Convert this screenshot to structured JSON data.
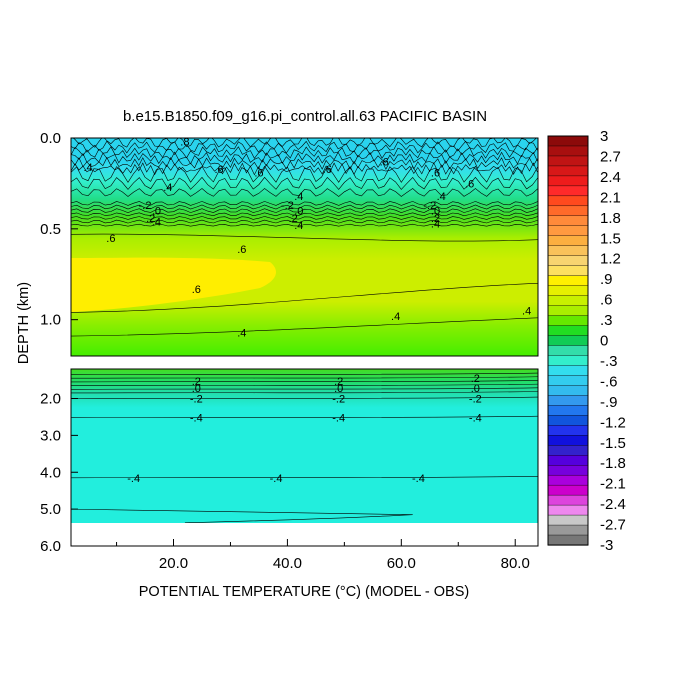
{
  "chart_data": {
    "type": "heatmap",
    "title": "b.e15.B1850.f09_g16.pi_control.all.63 PACIFIC BASIN",
    "xlabel": "POTENTIAL TEMPERATURE (°C) (MODEL - OBS)",
    "ylabel": "DEPTH (km)",
    "xlim": [
      2,
      84
    ],
    "upper_panel": {
      "ylim": [
        0.0,
        1.2
      ],
      "yticks": [
        "0.0",
        "0.5",
        "1.0"
      ]
    },
    "lower_panel": {
      "ylim": [
        1.2,
        6.0
      ],
      "yticks": [
        "2.0",
        "3.0",
        "4.0",
        "5.0",
        "6.0"
      ]
    },
    "xticks": [
      "20.0",
      "40.0",
      "60.0",
      "80.0"
    ],
    "xtick_values": [
      20,
      40,
      60,
      80
    ],
    "colorbar": {
      "labels": [
        "3",
        "2.7",
        "2.4",
        "2.1",
        "1.8",
        "1.5",
        "1.2",
        ".9",
        ".6",
        ".3",
        "0",
        "-.3",
        "-.6",
        "-.9",
        "-1.2",
        "-1.5",
        "-1.8",
        "-2.1",
        "-2.4",
        "-2.7",
        "-3"
      ],
      "colors": [
        "#8c0a0a",
        "#a80f0f",
        "#c01414",
        "#d81818",
        "#ee1c1c",
        "#ff2a2a",
        "#ff4a1e",
        "#ff6a2a",
        "#ff8a3a",
        "#ff9a40",
        "#fbaf40",
        "#f9c25a",
        "#f8d470",
        "#fde060",
        "#fff000",
        "#e6f000",
        "#c8f000",
        "#aaee00",
        "#66e800",
        "#22dd22",
        "#11cc55",
        "#33ddaa",
        "#33eecc",
        "#33ddee",
        "#33ccee",
        "#33bbee",
        "#3399ee",
        "#2277ee",
        "#1155dd",
        "#2233ee",
        "#1111dd",
        "#3322cc",
        "#5500dd",
        "#7700dd",
        "#aa00dd",
        "#cc00cc",
        "#dd44dd",
        "#ee88ee",
        "#c8c8c8",
        "#999999",
        "#777777"
      ]
    },
    "contour_labels": {
      "upper": [
        {
          "text": ".8",
          "x": 22,
          "y": 0.02
        },
        {
          "text": ".4",
          "x": 5,
          "y": 0.16
        },
        {
          "text": ".6",
          "x": 28,
          "y": 0.17
        },
        {
          "text": ".6",
          "x": 35,
          "y": 0.19
        },
        {
          "text": ".6",
          "x": 47,
          "y": 0.17
        },
        {
          "text": ".6",
          "x": 66,
          "y": 0.19
        },
        {
          "text": ".6",
          "x": 57,
          "y": 0.13
        },
        {
          "text": ".6",
          "x": 72,
          "y": 0.25
        },
        {
          "text": ".4",
          "x": 19,
          "y": 0.27
        },
        {
          "text": ".4",
          "x": 42,
          "y": 0.32
        },
        {
          "text": ".4",
          "x": 67,
          "y": 0.32
        },
        {
          "text": "-.2",
          "x": 15,
          "y": 0.37
        },
        {
          "text": ".0",
          "x": 17,
          "y": 0.4
        },
        {
          "text": ".2",
          "x": 16,
          "y": 0.44
        },
        {
          "text": ".4",
          "x": 17,
          "y": 0.46
        },
        {
          "text": "-.2",
          "x": 40,
          "y": 0.37
        },
        {
          "text": ".0",
          "x": 42,
          "y": 0.4
        },
        {
          "text": ".2",
          "x": 41,
          "y": 0.44
        },
        {
          "text": ".4",
          "x": 42,
          "y": 0.48
        },
        {
          "text": "-.2",
          "x": 65,
          "y": 0.37
        },
        {
          "text": ".0",
          "x": 66,
          "y": 0.4
        },
        {
          "text": ".2",
          "x": 66,
          "y": 0.44
        },
        {
          "text": ".4",
          "x": 66,
          "y": 0.47
        },
        {
          "text": ".6",
          "x": 9,
          "y": 0.55
        },
        {
          "text": ".6",
          "x": 32,
          "y": 0.61
        },
        {
          "text": ".6",
          "x": 24,
          "y": 0.83
        },
        {
          "text": ".4",
          "x": 59,
          "y": 0.98
        },
        {
          "text": ".4",
          "x": 82,
          "y": 0.95
        },
        {
          "text": ".4",
          "x": 32,
          "y": 1.07
        }
      ],
      "lower": [
        {
          "text": ".2",
          "x": 24,
          "y": 1.52
        },
        {
          "text": ".0",
          "x": 24,
          "y": 1.72
        },
        {
          "text": "-.2",
          "x": 24,
          "y": 2.0
        },
        {
          "text": "-.4",
          "x": 24,
          "y": 2.52
        },
        {
          "text": ".2",
          "x": 49,
          "y": 1.52
        },
        {
          "text": ".0",
          "x": 49,
          "y": 1.72
        },
        {
          "text": "-.2",
          "x": 49,
          "y": 2.0
        },
        {
          "text": "-.4",
          "x": 49,
          "y": 2.52
        },
        {
          "text": ".2",
          "x": 73,
          "y": 1.45
        },
        {
          "text": ".0",
          "x": 73,
          "y": 1.72
        },
        {
          "text": "-.2",
          "x": 73,
          "y": 2.0
        },
        {
          "text": "-.4",
          "x": 73,
          "y": 2.52
        },
        {
          "text": "-.4",
          "x": 13,
          "y": 4.15
        },
        {
          "text": "-.4",
          "x": 38,
          "y": 4.15
        },
        {
          "text": "-.4",
          "x": 63,
          "y": 4.15
        }
      ]
    }
  }
}
